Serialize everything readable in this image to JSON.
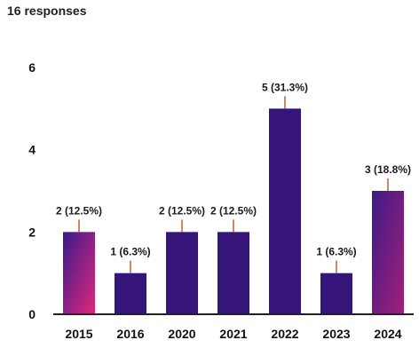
{
  "header": {
    "responses": "16 responses"
  },
  "chart_data": {
    "type": "bar",
    "categories": [
      "2015",
      "2016",
      "2020",
      "2021",
      "2022",
      "2023",
      "2024"
    ],
    "values": [
      2,
      1,
      2,
      2,
      5,
      1,
      3
    ],
    "data_labels": [
      "2 (12.5%)",
      "1 (6.3%)",
      "2 (12.5%)",
      "2 (12.5%)",
      "5 (31.3%)",
      "1 (6.3%)",
      "3 (18.8%)"
    ],
    "y_ticks": [
      0,
      2,
      4,
      6
    ],
    "ylim": [
      0,
      6
    ],
    "grid": false,
    "colors": {
      "bar_default": "#35157a",
      "bar_2015_top": "#e0287b",
      "bar_2015_bottom": "#3a1a8c",
      "bar_2024_top": "#a31f7c",
      "bar_2024_bottom": "#3d1b85",
      "axis": "#222222"
    }
  }
}
